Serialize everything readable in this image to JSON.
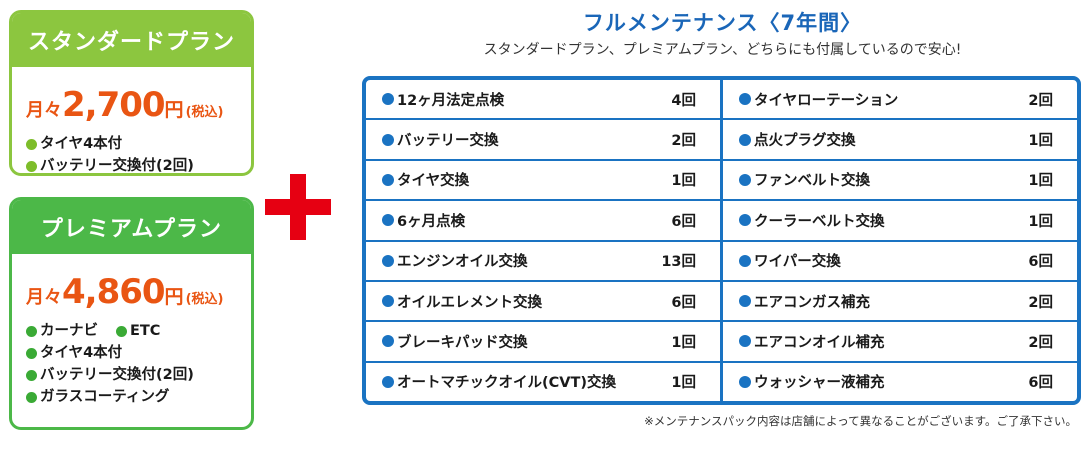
{
  "standard_plan": {
    "title": "スタンダードプラン",
    "price_prefix": "月々",
    "price": "2,700",
    "price_unit": "円",
    "tax_note": "(税込)",
    "features": [
      "タイヤ4本付",
      "バッテリー交換付(2回)"
    ]
  },
  "premium_plan": {
    "title": "プレミアムプラン",
    "price_prefix": "月々",
    "price": "4,860",
    "price_unit": "円",
    "tax_note": "(税込)",
    "feature_pair": [
      "カーナビ",
      "ETC"
    ],
    "features": [
      "タイヤ4本付",
      "バッテリー交換付(2回)",
      "ガラスコーティング"
    ]
  },
  "maintenance": {
    "title": "フルメンテナンス〈7年間〉",
    "subtitle": "スタンダードプラン、プレミアムプラン、どちらにも付属しているので安心!",
    "left_items": [
      {
        "name": "12ヶ月法定点検",
        "count": "4回"
      },
      {
        "name": "バッテリー交換",
        "count": "2回"
      },
      {
        "name": "タイヤ交換",
        "count": "1回"
      },
      {
        "name": "6ヶ月点検",
        "count": "6回"
      },
      {
        "name": "エンジンオイル交換",
        "count": "13回"
      },
      {
        "name": "オイルエレメント交換",
        "count": "6回"
      },
      {
        "name": "ブレーキパッド交換",
        "count": "1回"
      },
      {
        "name": "オートマチックオイル(CVT)交換",
        "count": "1回"
      }
    ],
    "right_items": [
      {
        "name": "タイヤローテーション",
        "count": "2回"
      },
      {
        "name": "点火プラグ交換",
        "count": "1回"
      },
      {
        "name": "ファンベルト交換",
        "count": "1回"
      },
      {
        "name": "クーラーベルト交換",
        "count": "1回"
      },
      {
        "name": "ワイパー交換",
        "count": "6回"
      },
      {
        "name": "エアコンガス補充",
        "count": "2回"
      },
      {
        "name": "エアコンオイル補充",
        "count": "2回"
      },
      {
        "name": "ウォッシャー液補充",
        "count": "6回"
      }
    ],
    "note": "※メンテナンスパック内容は店舗によって異なることがございます。ご了承下さい。"
  },
  "colors": {
    "standard_green": "#8cc63f",
    "premium_green": "#4cb848",
    "price_orange": "#e95513",
    "plus_red": "#e60012",
    "table_blue": "#1a73c2",
    "title_blue": "#1a66b8"
  }
}
